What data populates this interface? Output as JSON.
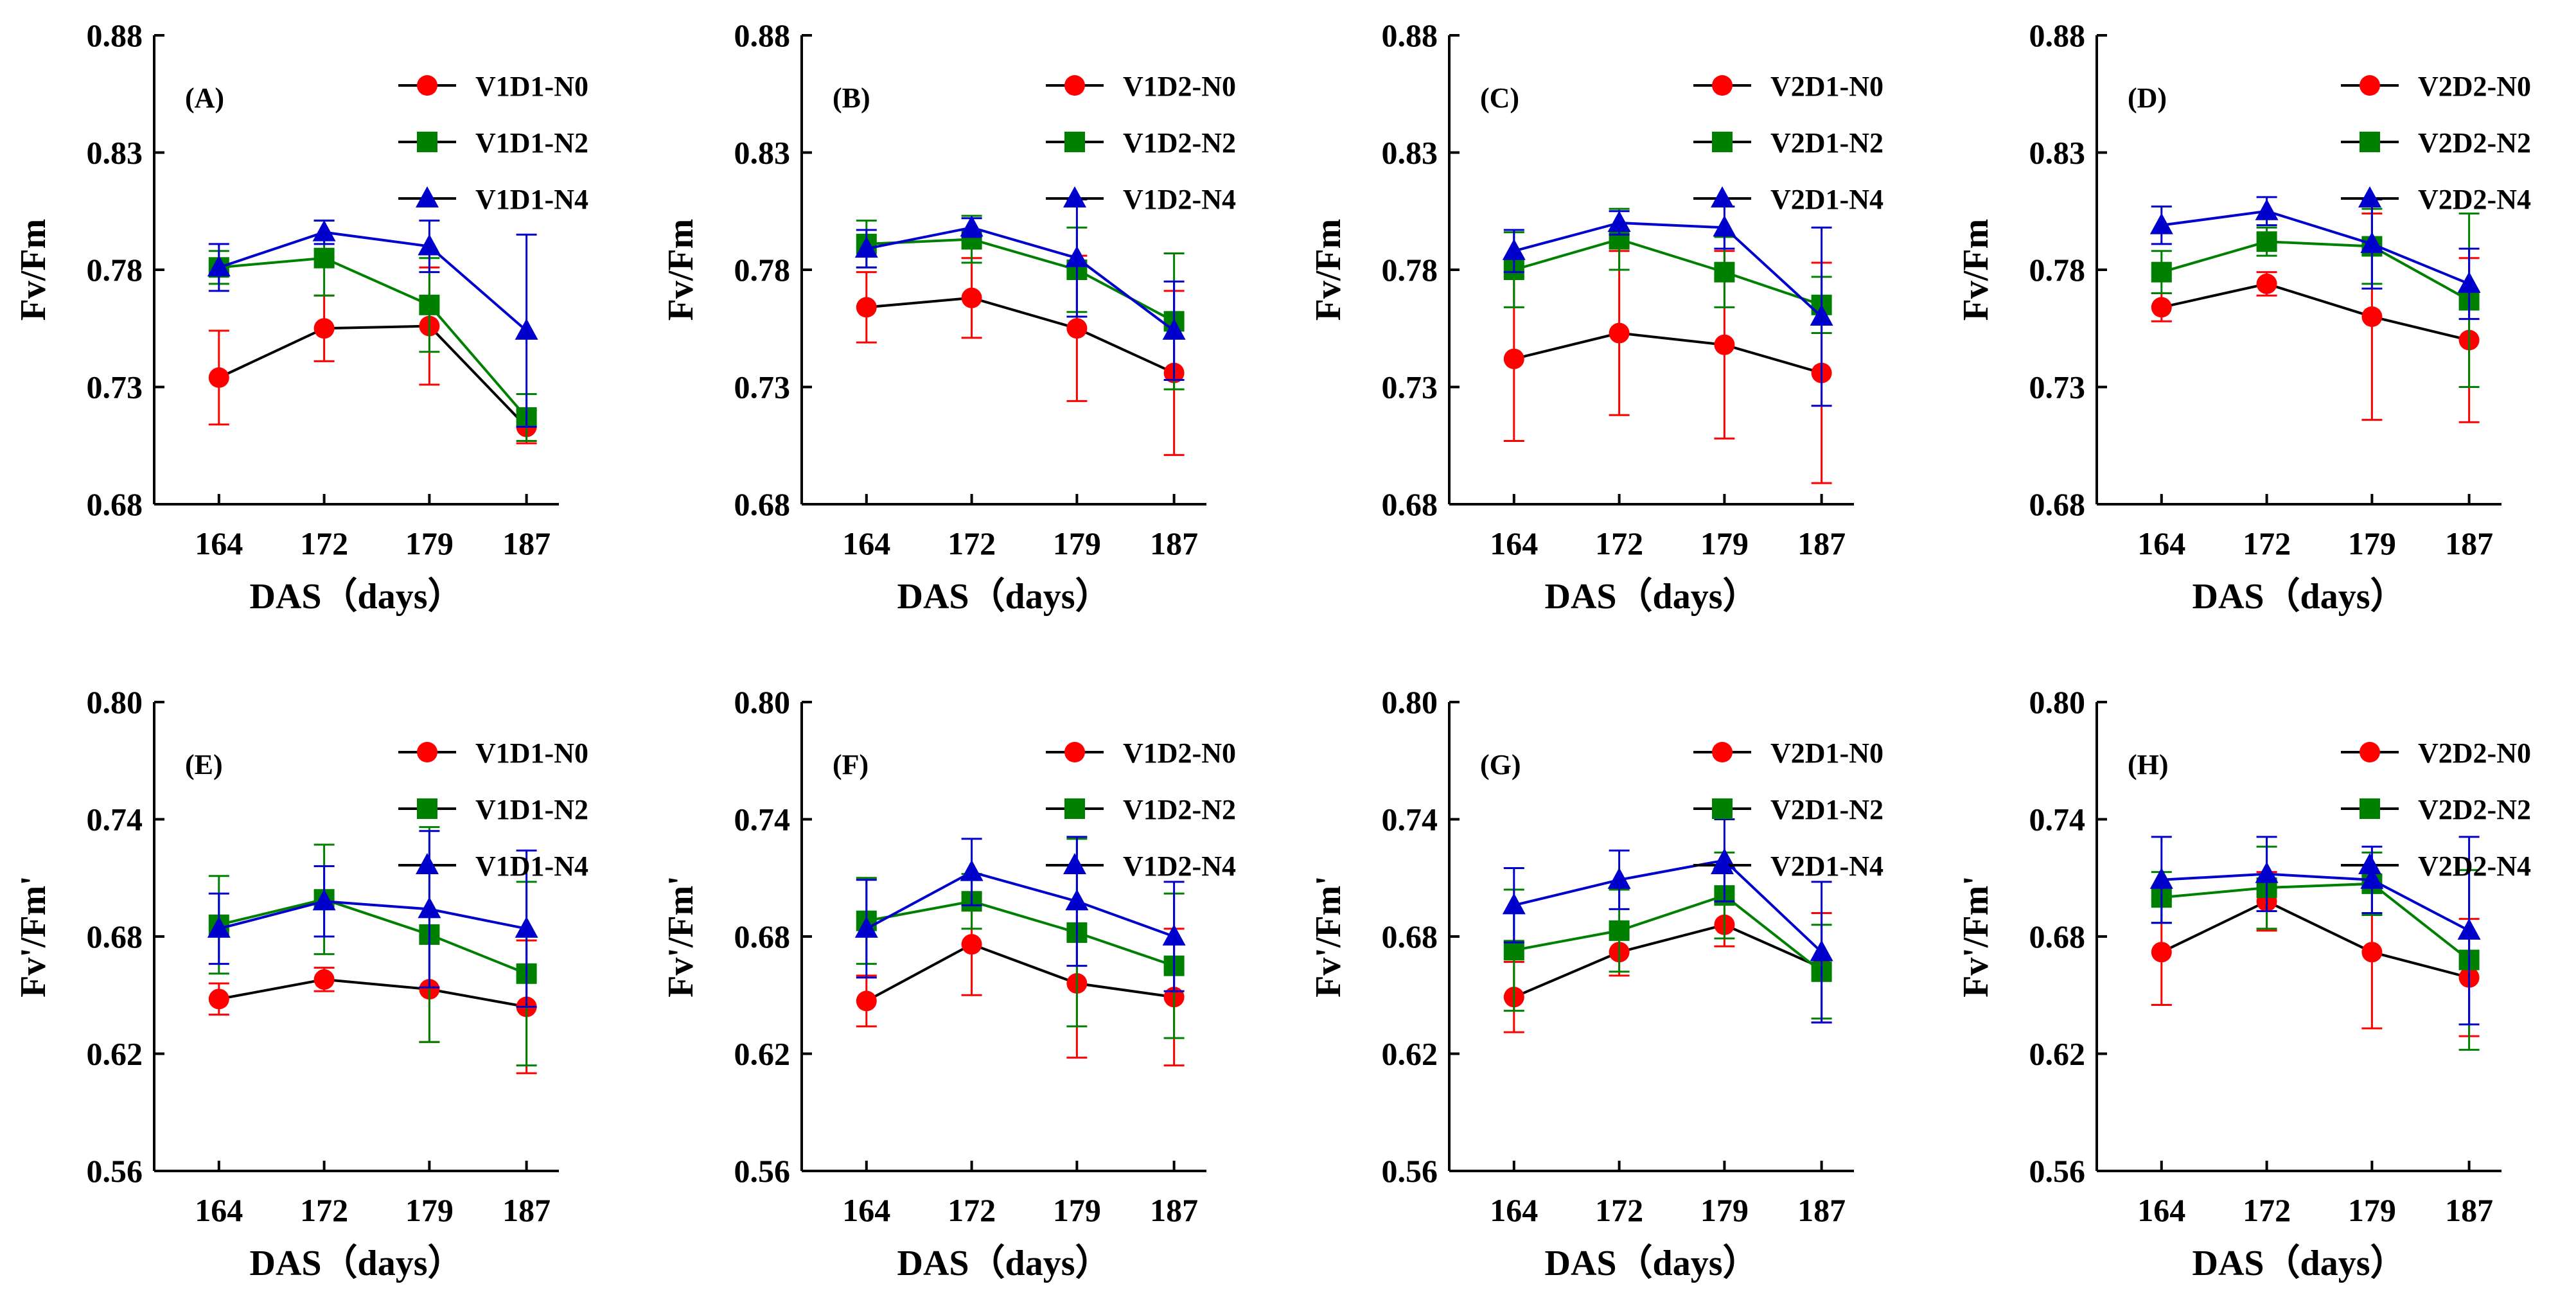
{
  "chart_data": [
    {
      "type": "line",
      "panel": "(A)",
      "xlabel": "DAS（days）",
      "ylabel": "Fv/Fm",
      "categories": [
        "164",
        "172",
        "179",
        "187"
      ],
      "ylim": [
        0.68,
        0.88
      ],
      "yticks": [
        "0.68",
        "0.73",
        "0.78",
        "0.83",
        "0.88"
      ],
      "legend_position": "top-right",
      "series": [
        {
          "name": "V1D1-N0",
          "color": "#ff0000",
          "marker": "circle",
          "values": [
            0.734,
            0.755,
            0.756,
            0.713
          ],
          "errors": [
            0.02,
            0.014,
            0.025,
            0.007
          ]
        },
        {
          "name": "V1D1-N2",
          "color": "#008000",
          "marker": "square",
          "values": [
            0.781,
            0.785,
            0.765,
            0.717
          ],
          "errors": [
            0.007,
            0.016,
            0.02,
            0.01
          ]
        },
        {
          "name": "V1D1-N4",
          "color": "#0000cc",
          "marker": "triangle",
          "values": [
            0.781,
            0.796,
            0.79,
            0.754
          ],
          "errors": [
            0.01,
            0.005,
            0.011,
            0.041
          ]
        }
      ]
    },
    {
      "type": "line",
      "panel": "(B)",
      "xlabel": "DAS（days）",
      "ylabel": "Fv/Fm",
      "categories": [
        "164",
        "172",
        "179",
        "187"
      ],
      "ylim": [
        0.68,
        0.88
      ],
      "yticks": [
        "0.68",
        "0.73",
        "0.78",
        "0.83",
        "0.88"
      ],
      "legend_position": "top-right",
      "series": [
        {
          "name": "V1D2-N0",
          "color": "#ff0000",
          "marker": "circle",
          "values": [
            0.764,
            0.768,
            0.755,
            0.736
          ],
          "errors": [
            0.015,
            0.017,
            0.031,
            0.035
          ]
        },
        {
          "name": "V1D2-N2",
          "color": "#008000",
          "marker": "square",
          "values": [
            0.791,
            0.793,
            0.78,
            0.758
          ],
          "errors": [
            0.01,
            0.01,
            0.018,
            0.029
          ]
        },
        {
          "name": "V1D2-N4",
          "color": "#0000cc",
          "marker": "triangle",
          "values": [
            0.789,
            0.798,
            0.785,
            0.754
          ],
          "errors": [
            0.008,
            0.004,
            0.025,
            0.021
          ]
        }
      ]
    },
    {
      "type": "line",
      "panel": "(C)",
      "xlabel": "DAS（days）",
      "ylabel": "Fv/Fm",
      "categories": [
        "164",
        "172",
        "179",
        "187"
      ],
      "ylim": [
        0.68,
        0.88
      ],
      "yticks": [
        "0.68",
        "0.73",
        "0.78",
        "0.83",
        "0.88"
      ],
      "legend_position": "top-right",
      "series": [
        {
          "name": "V2D1-N0",
          "color": "#ff0000",
          "marker": "circle",
          "values": [
            0.742,
            0.753,
            0.748,
            0.736
          ],
          "errors": [
            0.035,
            0.035,
            0.04,
            0.047
          ]
        },
        {
          "name": "V2D1-N2",
          "color": "#008000",
          "marker": "square",
          "values": [
            0.78,
            0.793,
            0.779,
            0.765
          ],
          "errors": [
            0.016,
            0.013,
            0.015,
            0.012
          ]
        },
        {
          "name": "V2D1-N4",
          "color": "#0000cc",
          "marker": "triangle",
          "values": [
            0.788,
            0.8,
            0.798,
            0.76
          ],
          "errors": [
            0.009,
            0.005,
            0.009,
            0.038
          ]
        }
      ]
    },
    {
      "type": "line",
      "panel": "(D)",
      "xlabel": "DAS（days）",
      "ylabel": "Fv/Fm",
      "categories": [
        "164",
        "172",
        "179",
        "187"
      ],
      "ylim": [
        0.68,
        0.88
      ],
      "yticks": [
        "0.68",
        "0.73",
        "0.78",
        "0.83",
        "0.88"
      ],
      "legend_position": "top-right",
      "series": [
        {
          "name": "V2D2-N0",
          "color": "#ff0000",
          "marker": "circle",
          "values": [
            0.764,
            0.774,
            0.76,
            0.75
          ],
          "errors": [
            0.006,
            0.005,
            0.044,
            0.035
          ]
        },
        {
          "name": "V2D2-N2",
          "color": "#008000",
          "marker": "square",
          "values": [
            0.779,
            0.792,
            0.79,
            0.767
          ],
          "errors": [
            0.009,
            0.006,
            0.016,
            0.037
          ]
        },
        {
          "name": "V2D2-N4",
          "color": "#0000cc",
          "marker": "triangle",
          "values": [
            0.799,
            0.805,
            0.791,
            0.774
          ],
          "errors": [
            0.008,
            0.006,
            0.019,
            0.015
          ]
        }
      ]
    },
    {
      "type": "line",
      "panel": "(E)",
      "xlabel": "DAS（days）",
      "ylabel": "Fv'/Fm'",
      "categories": [
        "164",
        "172",
        "179",
        "187"
      ],
      "ylim": [
        0.56,
        0.8
      ],
      "yticks": [
        "0.56",
        "0.62",
        "0.68",
        "0.74",
        "0.80"
      ],
      "legend_position": "top-right",
      "series": [
        {
          "name": "V1D1-N0",
          "color": "#ff0000",
          "marker": "circle",
          "values": [
            0.648,
            0.658,
            0.653,
            0.644
          ],
          "errors": [
            0.008,
            0.006,
            0.027,
            0.034
          ]
        },
        {
          "name": "V1D1-N2",
          "color": "#008000",
          "marker": "square",
          "values": [
            0.686,
            0.699,
            0.681,
            0.661
          ],
          "errors": [
            0.025,
            0.028,
            0.055,
            0.047
          ]
        },
        {
          "name": "V1D1-N4",
          "color": "#0000cc",
          "marker": "triangle",
          "values": [
            0.684,
            0.698,
            0.694,
            0.684
          ],
          "errors": [
            0.018,
            0.018,
            0.04,
            0.04
          ]
        }
      ]
    },
    {
      "type": "line",
      "panel": "(F)",
      "xlabel": "DAS（days）",
      "ylabel": "Fv'/Fm'",
      "categories": [
        "164",
        "172",
        "179",
        "187"
      ],
      "ylim": [
        0.56,
        0.8
      ],
      "yticks": [
        "0.56",
        "0.62",
        "0.68",
        "0.74",
        "0.80"
      ],
      "legend_position": "top-right",
      "series": [
        {
          "name": "V1D2-N0",
          "color": "#ff0000",
          "marker": "circle",
          "values": [
            0.647,
            0.676,
            0.656,
            0.649
          ],
          "errors": [
            0.013,
            0.026,
            0.038,
            0.035
          ]
        },
        {
          "name": "V1D2-N2",
          "color": "#008000",
          "marker": "square",
          "values": [
            0.688,
            0.698,
            0.682,
            0.665
          ],
          "errors": [
            0.022,
            0.014,
            0.048,
            0.037
          ]
        },
        {
          "name": "V1D2-N4",
          "color": "#0000cc",
          "marker": "triangle",
          "values": [
            0.684,
            0.713,
            0.698,
            0.68
          ],
          "errors": [
            0.025,
            0.017,
            0.033,
            0.028
          ]
        }
      ]
    },
    {
      "type": "line",
      "panel": "(G)",
      "xlabel": "DAS（days）",
      "ylabel": "Fv'/Fm'",
      "categories": [
        "164",
        "172",
        "179",
        "187"
      ],
      "ylim": [
        0.56,
        0.8
      ],
      "yticks": [
        "0.56",
        "0.62",
        "0.68",
        "0.74",
        "0.80"
      ],
      "legend_position": "top-right",
      "series": [
        {
          "name": "V2D1-N0",
          "color": "#ff0000",
          "marker": "circle",
          "values": [
            0.649,
            0.672,
            0.686,
            0.664
          ],
          "errors": [
            0.018,
            0.012,
            0.011,
            0.028
          ]
        },
        {
          "name": "V2D1-N2",
          "color": "#008000",
          "marker": "square",
          "values": [
            0.673,
            0.683,
            0.701,
            0.662
          ],
          "errors": [
            0.031,
            0.021,
            0.022,
            0.024
          ]
        },
        {
          "name": "V2D1-N4",
          "color": "#0000cc",
          "marker": "triangle",
          "values": [
            0.696,
            0.709,
            0.719,
            0.672
          ],
          "errors": [
            0.019,
            0.015,
            0.021,
            0.036
          ]
        }
      ]
    },
    {
      "type": "line",
      "panel": "(H)",
      "xlabel": "DAS（days）",
      "ylabel": "Fv'/Fm'",
      "categories": [
        "164",
        "172",
        "179",
        "187"
      ],
      "ylim": [
        0.56,
        0.8
      ],
      "yticks": [
        "0.56",
        "0.62",
        "0.68",
        "0.74",
        "0.80"
      ],
      "legend_position": "top-right",
      "series": [
        {
          "name": "V2D2-N0",
          "color": "#ff0000",
          "marker": "circle",
          "values": [
            0.672,
            0.698,
            0.672,
            0.659
          ],
          "errors": [
            0.027,
            0.015,
            0.039,
            0.03
          ]
        },
        {
          "name": "V2D2-N2",
          "color": "#008000",
          "marker": "square",
          "values": [
            0.7,
            0.705,
            0.707,
            0.668
          ],
          "errors": [
            0.013,
            0.021,
            0.016,
            0.046
          ]
        },
        {
          "name": "V2D2-N4",
          "color": "#0000cc",
          "marker": "triangle",
          "values": [
            0.709,
            0.712,
            0.709,
            0.683
          ],
          "errors": [
            0.022,
            0.019,
            0.017,
            0.048
          ]
        }
      ]
    }
  ]
}
